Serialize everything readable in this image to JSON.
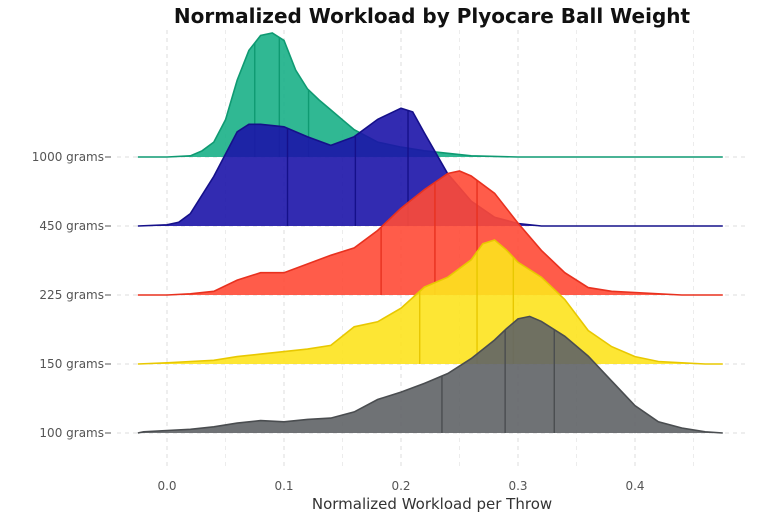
{
  "chart_data": {
    "type": "ridgeline",
    "title": "Normalized Workload by Plyocare Ball Weight",
    "xlabel": "Normalized Workload per Throw",
    "ylabel": "",
    "xlim": [
      -0.025,
      0.475
    ],
    "x_ticks": [
      0.0,
      0.1,
      0.2,
      0.3,
      0.4
    ],
    "x_tick_labels": [
      "0.0",
      "0.1",
      "0.2",
      "0.3",
      "0.4"
    ],
    "grid": true,
    "legend": "none",
    "series": [
      {
        "name": "100 grams",
        "fill": "#5f6366",
        "line": "#4a4d50",
        "quantiles": [
          0.235,
          0.289,
          0.331
        ],
        "x": [
          -0.025,
          -0.02,
          0.0,
          0.02,
          0.04,
          0.06,
          0.08,
          0.1,
          0.12,
          0.14,
          0.16,
          0.18,
          0.2,
          0.22,
          0.24,
          0.26,
          0.28,
          0.29,
          0.3,
          0.31,
          0.32,
          0.34,
          0.36,
          0.38,
          0.4,
          0.42,
          0.44,
          0.46,
          0.475
        ],
        "density": [
          0.0,
          0.01,
          0.02,
          0.03,
          0.05,
          0.08,
          0.1,
          0.09,
          0.11,
          0.12,
          0.17,
          0.27,
          0.33,
          0.4,
          0.48,
          0.6,
          0.75,
          0.84,
          0.92,
          0.94,
          0.9,
          0.78,
          0.62,
          0.42,
          0.22,
          0.09,
          0.04,
          0.01,
          0.0
        ]
      },
      {
        "name": "150 grams",
        "fill": "#fde31e",
        "line": "#e8c800",
        "quantiles": [
          0.216,
          0.265,
          0.296
        ],
        "x": [
          -0.025,
          0.0,
          0.02,
          0.04,
          0.06,
          0.08,
          0.1,
          0.12,
          0.14,
          0.16,
          0.18,
          0.2,
          0.22,
          0.24,
          0.26,
          0.27,
          0.28,
          0.29,
          0.3,
          0.32,
          0.34,
          0.36,
          0.38,
          0.4,
          0.42,
          0.44,
          0.46,
          0.475
        ],
        "density": [
          0.0,
          0.01,
          0.02,
          0.03,
          0.06,
          0.08,
          0.1,
          0.12,
          0.15,
          0.3,
          0.34,
          0.45,
          0.62,
          0.7,
          0.84,
          0.97,
          1.0,
          0.92,
          0.82,
          0.7,
          0.52,
          0.27,
          0.14,
          0.06,
          0.02,
          0.01,
          0.0,
          0.0
        ]
      },
      {
        "name": "225 grams",
        "fill": "#ff4a36",
        "line": "#e8311f",
        "quantiles": [
          0.183,
          0.229,
          0.265
        ],
        "x": [
          -0.025,
          0.0,
          0.02,
          0.04,
          0.06,
          0.08,
          0.1,
          0.12,
          0.14,
          0.16,
          0.18,
          0.2,
          0.22,
          0.24,
          0.25,
          0.26,
          0.28,
          0.3,
          0.32,
          0.34,
          0.36,
          0.38,
          0.4,
          0.42,
          0.44,
          0.46,
          0.475
        ],
        "density": [
          0.0,
          0.0,
          0.01,
          0.03,
          0.12,
          0.18,
          0.18,
          0.25,
          0.32,
          0.38,
          0.52,
          0.7,
          0.85,
          0.98,
          1.0,
          0.96,
          0.82,
          0.58,
          0.36,
          0.18,
          0.06,
          0.03,
          0.02,
          0.01,
          0.0,
          0.0,
          0.0
        ]
      },
      {
        "name": "450 grams",
        "fill": "#1c14a8",
        "line": "#15108a",
        "quantiles": [
          0.103,
          0.161,
          0.206
        ],
        "x": [
          -0.025,
          0.0,
          0.01,
          0.02,
          0.04,
          0.06,
          0.07,
          0.08,
          0.1,
          0.12,
          0.14,
          0.16,
          0.18,
          0.2,
          0.21,
          0.22,
          0.24,
          0.26,
          0.28,
          0.3,
          0.32,
          0.36,
          0.4,
          0.44,
          0.475
        ],
        "density": [
          0.0,
          0.01,
          0.03,
          0.1,
          0.4,
          0.76,
          0.82,
          0.82,
          0.8,
          0.72,
          0.65,
          0.72,
          0.86,
          0.95,
          0.92,
          0.75,
          0.42,
          0.2,
          0.07,
          0.02,
          0.0,
          0.0,
          0.0,
          0.0,
          0.0
        ]
      },
      {
        "name": "1000 grams",
        "fill": "#1ab087",
        "line": "#0f9a72",
        "quantiles": [
          0.075,
          0.096,
          0.121
        ],
        "x": [
          -0.025,
          0.0,
          0.02,
          0.03,
          0.04,
          0.05,
          0.06,
          0.07,
          0.08,
          0.09,
          0.1,
          0.11,
          0.12,
          0.13,
          0.14,
          0.15,
          0.16,
          0.18,
          0.2,
          0.22,
          0.24,
          0.26,
          0.3,
          0.36,
          0.42,
          0.475
        ],
        "density": [
          0.0,
          0.0,
          0.01,
          0.05,
          0.12,
          0.3,
          0.62,
          0.86,
          0.98,
          1.0,
          0.94,
          0.7,
          0.55,
          0.46,
          0.38,
          0.3,
          0.22,
          0.12,
          0.08,
          0.05,
          0.03,
          0.01,
          0.0,
          0.0,
          0.0,
          0.0
        ]
      }
    ]
  }
}
